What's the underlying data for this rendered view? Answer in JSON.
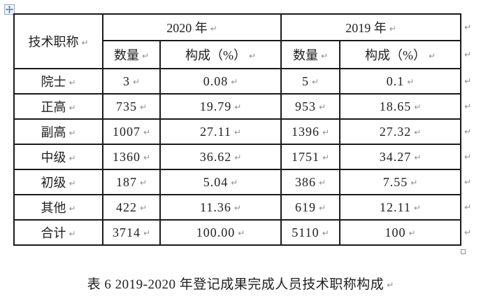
{
  "document": {
    "caption": "表 6 2019-2020 年登记成果完成人员技术职称构成"
  },
  "marks": {
    "end_of_cell": "↵"
  },
  "colors": {
    "table_border": "#1a1a1a",
    "text": "#202020",
    "formatting_mark_gray": "#8f8f8f",
    "move_handle_blue": "#4a72b8",
    "handle_border_gray": "#8f8f8f"
  },
  "table": {
    "corner_header": "技术职称",
    "year_2020_label": "2020 年",
    "year_2019_label": "2019 年",
    "subheader_count": "数量",
    "subheader_pct": "构成（%）",
    "rows": [
      {
        "label": "院士",
        "count_2020": "3",
        "pct_2020": "0.08",
        "count_2019": "5",
        "pct_2019": "0.1"
      },
      {
        "label": "正高",
        "count_2020": "735",
        "pct_2020": "19.79",
        "count_2019": "953",
        "pct_2019": "18.65"
      },
      {
        "label": "副高",
        "count_2020": "1007",
        "pct_2020": "27.11",
        "count_2019": "1396",
        "pct_2019": "27.32"
      },
      {
        "label": "中级",
        "count_2020": "1360",
        "pct_2020": "36.62",
        "count_2019": "1751",
        "pct_2019": "34.27"
      },
      {
        "label": "初级",
        "count_2020": "187",
        "pct_2020": "5.04",
        "count_2019": "386",
        "pct_2019": "7.55"
      },
      {
        "label": "其他",
        "count_2020": "422",
        "pct_2020": "11.36",
        "count_2019": "619",
        "pct_2019": "12.11"
      },
      {
        "label": "合计",
        "count_2020": "3714",
        "pct_2020": "100.00",
        "count_2019": "5110",
        "pct_2019": "100"
      }
    ]
  }
}
